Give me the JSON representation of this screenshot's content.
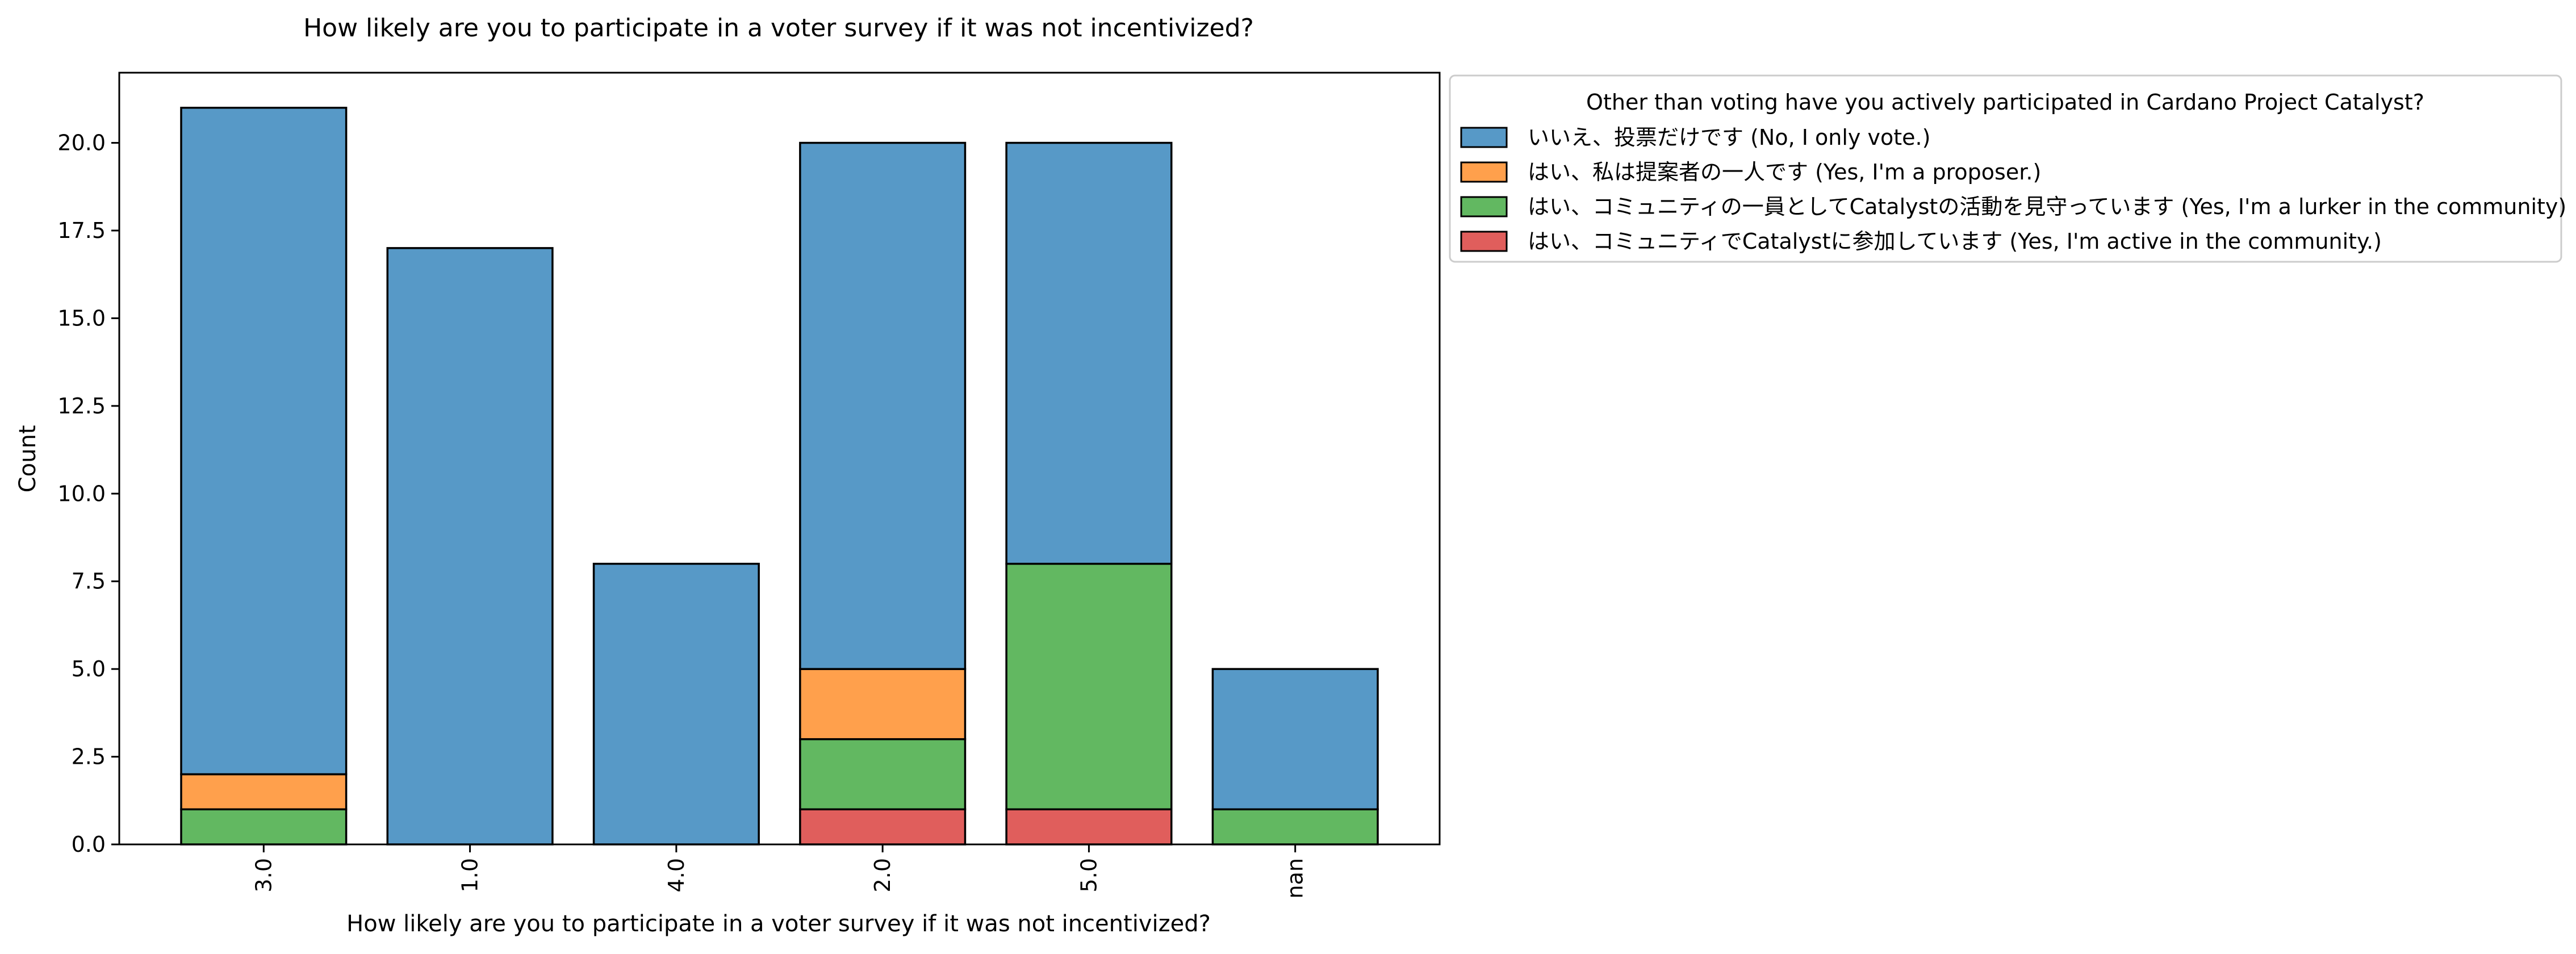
{
  "chart_data": {
    "type": "bar",
    "stacked": true,
    "title": "How likely are you to participate in a voter survey if it was not incentivized?",
    "xlabel": "How likely are you to participate in a voter survey if it was not incentivized?",
    "ylabel": "Count",
    "categories": [
      "3.0",
      "1.0",
      "4.0",
      "2.0",
      "5.0",
      "nan"
    ],
    "ylim": [
      0,
      22
    ],
    "yticks": [
      0.0,
      2.5,
      5.0,
      7.5,
      10.0,
      12.5,
      15.0,
      17.5,
      20.0
    ],
    "ytick_labels": [
      "0.0",
      "2.5",
      "5.0",
      "7.5",
      "10.0",
      "12.5",
      "15.0",
      "17.5",
      "20.0"
    ],
    "grid": false,
    "legend": {
      "title": "Other than voting have you actively participated in Cardano Project Catalyst?",
      "placement": "outside-top-right"
    },
    "series": [
      {
        "name": "いいえ、投票だけです (No, I only vote.)",
        "color": "#5799c7",
        "values": [
          19,
          17,
          8,
          15,
          12,
          4
        ]
      },
      {
        "name": "はい、私は提案者の一人です (Yes, I'm a proposer.)",
        "color": "#ffa04c",
        "values": [
          1,
          0,
          0,
          2,
          0,
          0
        ]
      },
      {
        "name": "はい、コミュニティの一員としてCatalystの活動を見守っています (Yes, I'm a lurker in the community)",
        "color": "#62b861",
        "values": [
          1,
          0,
          0,
          2,
          7,
          1
        ]
      },
      {
        "name": "はい、コミュニティでCatalystに参加しています (Yes, I'm active in the community.)",
        "color": "#e05e5c",
        "values": [
          0,
          0,
          0,
          1,
          1,
          0
        ]
      }
    ]
  }
}
